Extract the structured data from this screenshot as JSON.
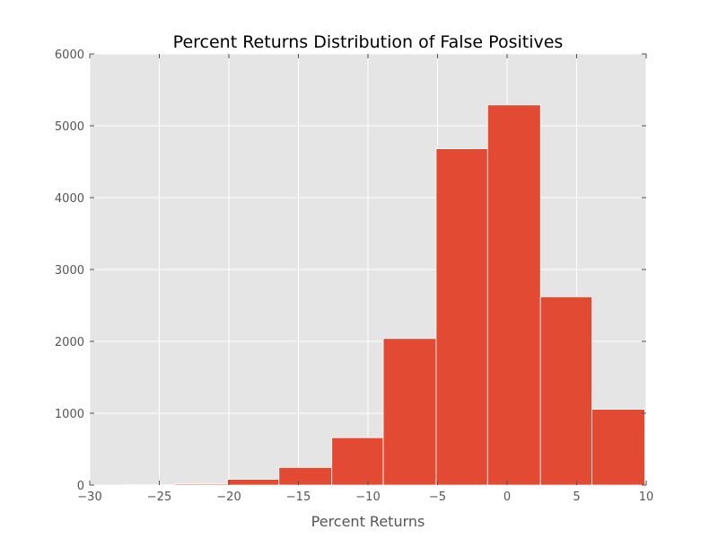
{
  "chart_data": {
    "type": "bar",
    "title": "Percent Returns Distribution of False Positives",
    "xlabel": "Percent Returns",
    "ylabel": "",
    "xlim": [
      -30,
      10
    ],
    "ylim": [
      0,
      6000
    ],
    "x_ticks": [
      -30,
      -25,
      -20,
      -15,
      -10,
      -5,
      0,
      5,
      10
    ],
    "x_tick_labels": [
      "−30",
      "−25",
      "−20",
      "−15",
      "−10",
      "−5",
      "0",
      "5",
      "10"
    ],
    "y_ticks": [
      0,
      1000,
      2000,
      3000,
      4000,
      5000,
      6000
    ],
    "y_tick_labels": [
      "0",
      "1000",
      "2000",
      "3000",
      "4000",
      "5000",
      "6000"
    ],
    "grid": true,
    "bins": [
      {
        "start": -27.6,
        "end": -23.9,
        "count": 3
      },
      {
        "start": -23.9,
        "end": -20.1,
        "count": 15
      },
      {
        "start": -20.1,
        "end": -16.4,
        "count": 80
      },
      {
        "start": -16.4,
        "end": -12.6,
        "count": 245
      },
      {
        "start": -12.6,
        "end": -8.9,
        "count": 660
      },
      {
        "start": -8.9,
        "end": -5.1,
        "count": 2040
      },
      {
        "start": -5.1,
        "end": -1.4,
        "count": 4680
      },
      {
        "start": -1.4,
        "end": 2.4,
        "count": 5290
      },
      {
        "start": 2.4,
        "end": 6.1,
        "count": 2620
      },
      {
        "start": 6.1,
        "end": 9.9,
        "count": 1055
      }
    ],
    "colors": {
      "bar": "#e24a33",
      "plot_background": "#e5e5e5",
      "grid": "#ffffff",
      "tick": "#555555"
    }
  }
}
